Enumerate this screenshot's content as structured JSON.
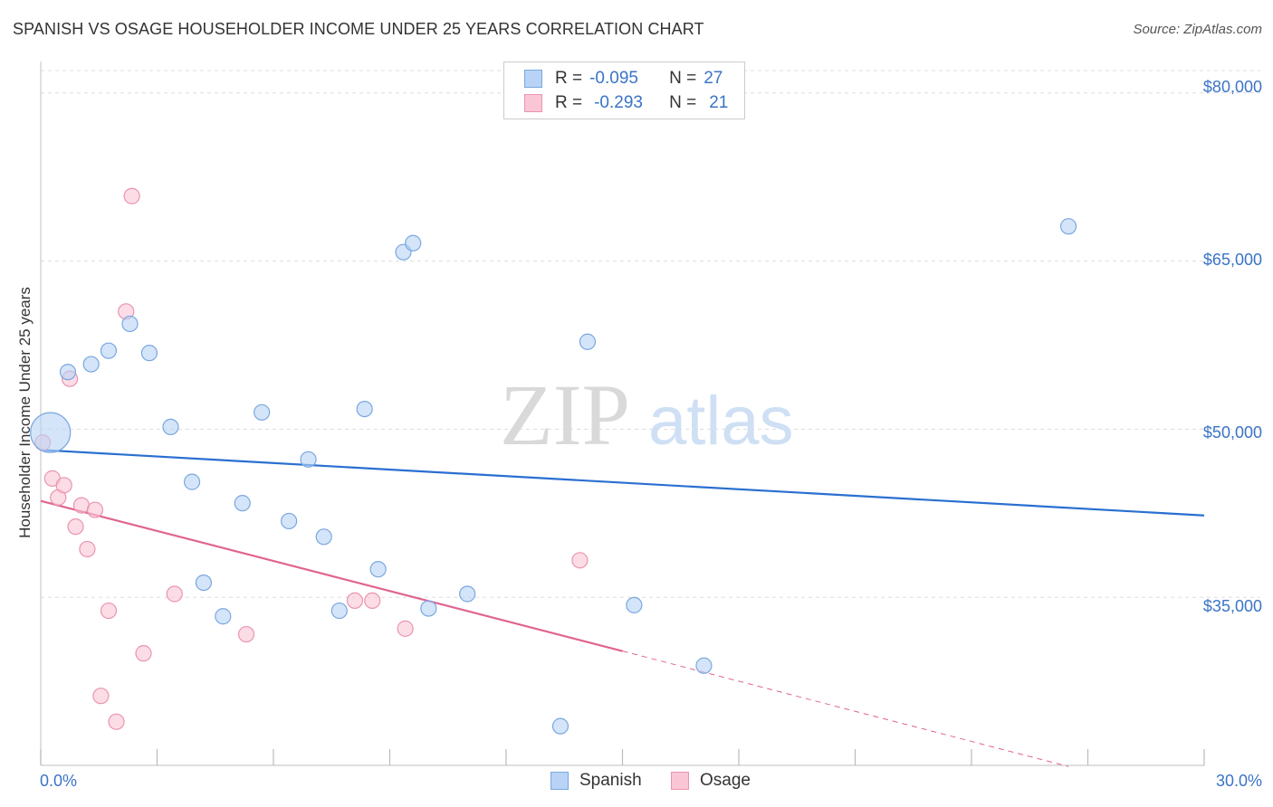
{
  "header": {
    "title": "SPANISH VS OSAGE HOUSEHOLDER INCOME UNDER 25 YEARS CORRELATION CHART",
    "source": "Source: ZipAtlas.com"
  },
  "legend": {
    "r_label": "R =",
    "n_label": "N =",
    "spanish": {
      "r": "-0.095",
      "n": "27"
    },
    "osage": {
      "r": "-0.293",
      "n": "21"
    },
    "bottom": {
      "spanish": "Spanish",
      "osage": "Osage"
    }
  },
  "watermark": {
    "zip": "ZIP",
    "atlas": "atlas"
  },
  "colors": {
    "spanish_fill": "#b8d3f5",
    "spanish_stroke": "#7aa7e0",
    "spanish_line": "#2a6fd0",
    "osage_fill": "#fac6d6",
    "osage_stroke": "#eb94b0",
    "osage_line": "#e0648f",
    "axis_text": "#3a74c7"
  },
  "chart_data": {
    "type": "scatter",
    "title": "SPANISH VS OSAGE HOUSEHOLDER INCOME UNDER 25 YEARS CORRELATION CHART",
    "xlabel": "",
    "ylabel": "Householder Income Under 25 years",
    "xlim": [
      0,
      30
    ],
    "ylim": [
      20000,
      82000
    ],
    "x_tick_labels": [
      "0.0%",
      "30.0%"
    ],
    "y_ticks": [
      35000,
      50000,
      65000,
      80000
    ],
    "y_tick_labels": [
      "$35,000",
      "$50,000",
      "$65,000",
      "$80,000"
    ],
    "grid": true,
    "series": [
      {
        "name": "Spanish",
        "points": [
          {
            "x": 0.25,
            "y": 49700,
            "size": "large"
          },
          {
            "x": 0.7,
            "y": 55100
          },
          {
            "x": 1.3,
            "y": 55800
          },
          {
            "x": 1.75,
            "y": 57000
          },
          {
            "x": 2.3,
            "y": 59400
          },
          {
            "x": 2.8,
            "y": 56800
          },
          {
            "x": 3.35,
            "y": 50200
          },
          {
            "x": 3.9,
            "y": 45300
          },
          {
            "x": 4.2,
            "y": 36300
          },
          {
            "x": 4.7,
            "y": 33300
          },
          {
            "x": 5.2,
            "y": 43400
          },
          {
            "x": 5.7,
            "y": 51500
          },
          {
            "x": 6.4,
            "y": 41800
          },
          {
            "x": 6.9,
            "y": 47300
          },
          {
            "x": 7.3,
            "y": 40400
          },
          {
            "x": 7.7,
            "y": 33800
          },
          {
            "x": 8.35,
            "y": 51800
          },
          {
            "x": 8.7,
            "y": 37500
          },
          {
            "x": 9.35,
            "y": 65800
          },
          {
            "x": 9.6,
            "y": 66600
          },
          {
            "x": 10.0,
            "y": 34000
          },
          {
            "x": 11.0,
            "y": 35300
          },
          {
            "x": 13.4,
            "y": 23500
          },
          {
            "x": 14.1,
            "y": 57800
          },
          {
            "x": 15.3,
            "y": 34300
          },
          {
            "x": 17.1,
            "y": 28900
          },
          {
            "x": 26.5,
            "y": 68100
          }
        ],
        "trend": {
          "x0": 0,
          "y0": 48150,
          "x1": 30,
          "y1": 42300
        }
      },
      {
        "name": "Osage",
        "points": [
          {
            "x": 0.05,
            "y": 48800
          },
          {
            "x": 0.3,
            "y": 45600
          },
          {
            "x": 0.45,
            "y": 43900
          },
          {
            "x": 0.6,
            "y": 45000
          },
          {
            "x": 0.75,
            "y": 54500
          },
          {
            "x": 0.9,
            "y": 41300
          },
          {
            "x": 1.05,
            "y": 43200
          },
          {
            "x": 1.2,
            "y": 39300
          },
          {
            "x": 1.4,
            "y": 42800
          },
          {
            "x": 1.55,
            "y": 26200
          },
          {
            "x": 1.75,
            "y": 33800
          },
          {
            "x": 1.95,
            "y": 23900
          },
          {
            "x": 2.2,
            "y": 60500
          },
          {
            "x": 2.35,
            "y": 70800
          },
          {
            "x": 2.65,
            "y": 30000
          },
          {
            "x": 3.45,
            "y": 35300
          },
          {
            "x": 5.3,
            "y": 31700
          },
          {
            "x": 8.1,
            "y": 34700
          },
          {
            "x": 8.55,
            "y": 34700
          },
          {
            "x": 9.4,
            "y": 32200
          },
          {
            "x": 13.9,
            "y": 38300
          }
        ],
        "trend": {
          "x0": 0,
          "y0": 43600,
          "x1": 15,
          "y1": 30200,
          "dash_to_x": 26.5,
          "dash_to_y": 19900
        }
      }
    ]
  }
}
